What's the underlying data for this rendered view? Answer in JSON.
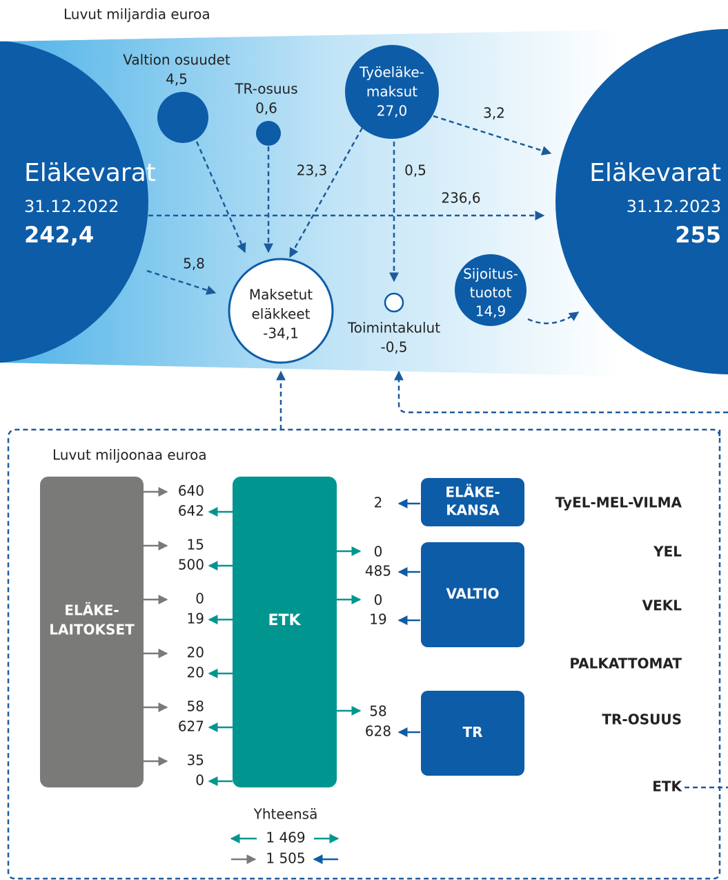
{
  "top": {
    "unit": "Luvut miljardia euroa",
    "start": {
      "title": "Eläkevarat",
      "date": "31.12.2022",
      "amount": "242,4"
    },
    "end": {
      "title": "Eläkevarat",
      "date": "31.12.2023",
      "amount": "255"
    },
    "state_contributions": {
      "label": "Valtion osuudet",
      "amount": "4,5"
    },
    "tr_share": {
      "label": "TR-osuus",
      "amount": "0,6"
    },
    "contributions": {
      "label": [
        "Työeläke-",
        "maksut"
      ],
      "amount": "27,0"
    },
    "pensions_paid": {
      "label": [
        "Maksetut",
        "eläkkeet"
      ],
      "amount": "-34,1"
    },
    "operating_costs": {
      "label": "Toimintakulut",
      "amount": "-0,5"
    },
    "investment_income": {
      "label": [
        "Sijoitus-",
        "tuotot"
      ],
      "amount": "14,9"
    },
    "flows": {
      "contributions_to_pensions": "23,3",
      "contributions_to_end": "3,2",
      "contributions_to_costs": "0,5",
      "start_to_end": "236,6",
      "start_to_pensions": "5,8"
    }
  },
  "bottom": {
    "unit": "Luvut miljoonaa euroa",
    "institutions": [
      "ELÄKE-",
      "LAITOKSET"
    ],
    "center": "ETK",
    "rows": [
      [
        "640",
        "642"
      ],
      [
        "15",
        "500"
      ],
      [
        "0",
        "19"
      ],
      [
        "20",
        "20"
      ],
      [
        "58",
        "627"
      ],
      [
        "35",
        "0"
      ]
    ],
    "right_rows": [
      [
        "2"
      ],
      [
        "0",
        "485"
      ],
      [
        "0",
        "19"
      ],
      [
        "58",
        "628"
      ]
    ],
    "entities": [
      [
        "ELÄKE-",
        "KANSA"
      ],
      [
        "VALTIO"
      ],
      [
        "TR"
      ]
    ],
    "schemes": [
      "TyEL-MEL-VILMA",
      "YEL",
      "VEKL",
      "PALKATTOMAT",
      "TR-OSUUS",
      "ETK"
    ],
    "total": {
      "label": "Yhteensä",
      "values": [
        "1 469",
        "1 505"
      ]
    }
  }
}
